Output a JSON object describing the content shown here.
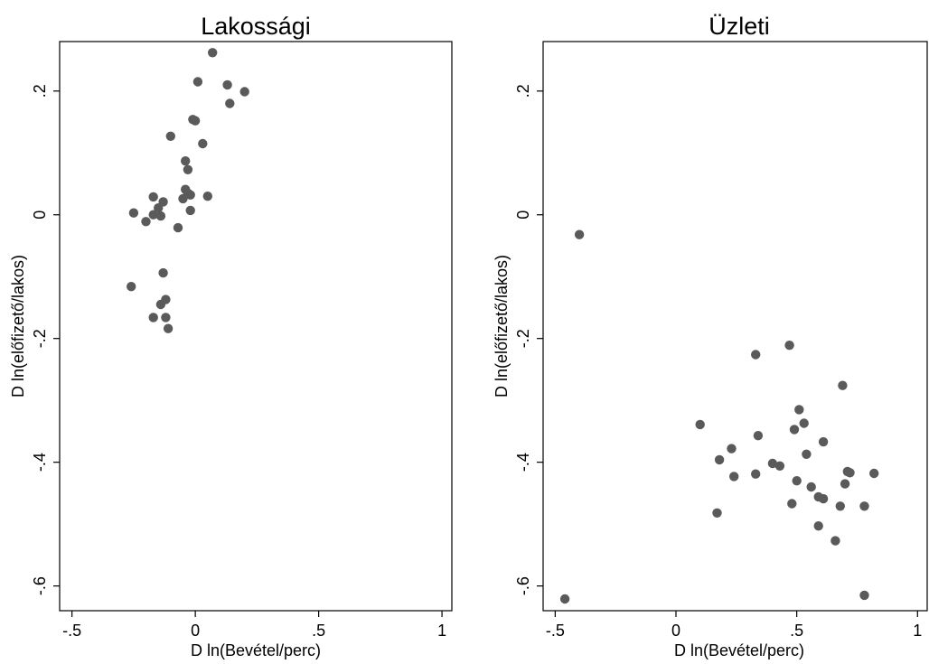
{
  "chart_data": [
    {
      "type": "scatter",
      "title": "Lakossági",
      "xlabel": "D ln(Bevétel/perc)",
      "ylabel": "D ln(előfizető/lakos)",
      "xlim": [
        -0.55,
        1.04
      ],
      "ylim": [
        -0.64,
        0.28
      ],
      "xticks": [
        -0.5,
        0,
        0.5,
        1
      ],
      "xtick_labels": [
        "-.5",
        "0",
        ".5",
        "1"
      ],
      "yticks": [
        -0.6,
        -0.4,
        -0.2,
        0,
        0.2
      ],
      "ytick_labels": [
        "-.6",
        "-.4",
        "-.2",
        "0",
        ".2"
      ],
      "marker_color": "#5a5a5a",
      "grid": false,
      "points": [
        [
          0.07,
          0.262
        ],
        [
          0.01,
          0.215
        ],
        [
          0.13,
          0.21
        ],
        [
          0.2,
          0.199
        ],
        [
          0.14,
          0.18
        ],
        [
          -0.01,
          0.154
        ],
        [
          0.0,
          0.152
        ],
        [
          -0.1,
          0.127
        ],
        [
          0.03,
          0.115
        ],
        [
          -0.04,
          0.087
        ],
        [
          -0.03,
          0.073
        ],
        [
          -0.04,
          0.041
        ],
        [
          -0.03,
          0.035
        ],
        [
          -0.02,
          0.032
        ],
        [
          -0.05,
          0.026
        ],
        [
          0.05,
          0.03
        ],
        [
          -0.17,
          0.029
        ],
        [
          -0.13,
          0.021
        ],
        [
          -0.15,
          0.011
        ],
        [
          -0.02,
          0.007
        ],
        [
          -0.25,
          0.003
        ],
        [
          -0.17,
          0.0
        ],
        [
          -0.14,
          -0.002
        ],
        [
          -0.2,
          -0.011
        ],
        [
          -0.07,
          -0.021
        ],
        [
          -0.13,
          -0.094
        ],
        [
          -0.26,
          -0.116
        ],
        [
          -0.12,
          -0.137
        ],
        [
          -0.14,
          -0.145
        ],
        [
          -0.17,
          -0.166
        ],
        [
          -0.12,
          -0.166
        ],
        [
          -0.11,
          -0.184
        ]
      ]
    },
    {
      "type": "scatter",
      "title": "Üzleti",
      "xlabel": "D ln(Bevétel/perc)",
      "ylabel": "D ln(előfizető/lakos)",
      "xlim": [
        -0.55,
        1.04
      ],
      "ylim": [
        -0.64,
        0.28
      ],
      "xticks": [
        -0.5,
        0,
        0.5,
        1
      ],
      "xtick_labels": [
        "-.5",
        "0",
        ".5",
        "1"
      ],
      "yticks": [
        -0.6,
        -0.4,
        -0.2,
        0,
        0.2
      ],
      "ytick_labels": [
        "-.6",
        "-.4",
        "-.2",
        "0",
        ".2"
      ],
      "marker_color": "#5a5a5a",
      "grid": false,
      "points": [
        [
          -0.4,
          -0.032
        ],
        [
          0.47,
          -0.211
        ],
        [
          0.33,
          -0.226
        ],
        [
          0.69,
          -0.276
        ],
        [
          0.51,
          -0.315
        ],
        [
          0.1,
          -0.339
        ],
        [
          0.53,
          -0.337
        ],
        [
          0.49,
          -0.347
        ],
        [
          0.34,
          -0.357
        ],
        [
          0.61,
          -0.367
        ],
        [
          0.23,
          -0.378
        ],
        [
          0.54,
          -0.387
        ],
        [
          0.18,
          -0.396
        ],
        [
          0.4,
          -0.402
        ],
        [
          0.43,
          -0.406
        ],
        [
          0.71,
          -0.415
        ],
        [
          0.72,
          -0.417
        ],
        [
          0.82,
          -0.418
        ],
        [
          0.33,
          -0.419
        ],
        [
          0.24,
          -0.423
        ],
        [
          0.5,
          -0.43
        ],
        [
          0.7,
          -0.435
        ],
        [
          0.56,
          -0.44
        ],
        [
          0.59,
          -0.456
        ],
        [
          0.61,
          -0.459
        ],
        [
          0.48,
          -0.467
        ],
        [
          0.68,
          -0.471
        ],
        [
          0.78,
          -0.471
        ],
        [
          0.17,
          -0.482
        ],
        [
          0.59,
          -0.503
        ],
        [
          0.66,
          -0.527
        ],
        [
          -0.46,
          -0.621
        ],
        [
          0.78,
          -0.615
        ]
      ]
    }
  ]
}
